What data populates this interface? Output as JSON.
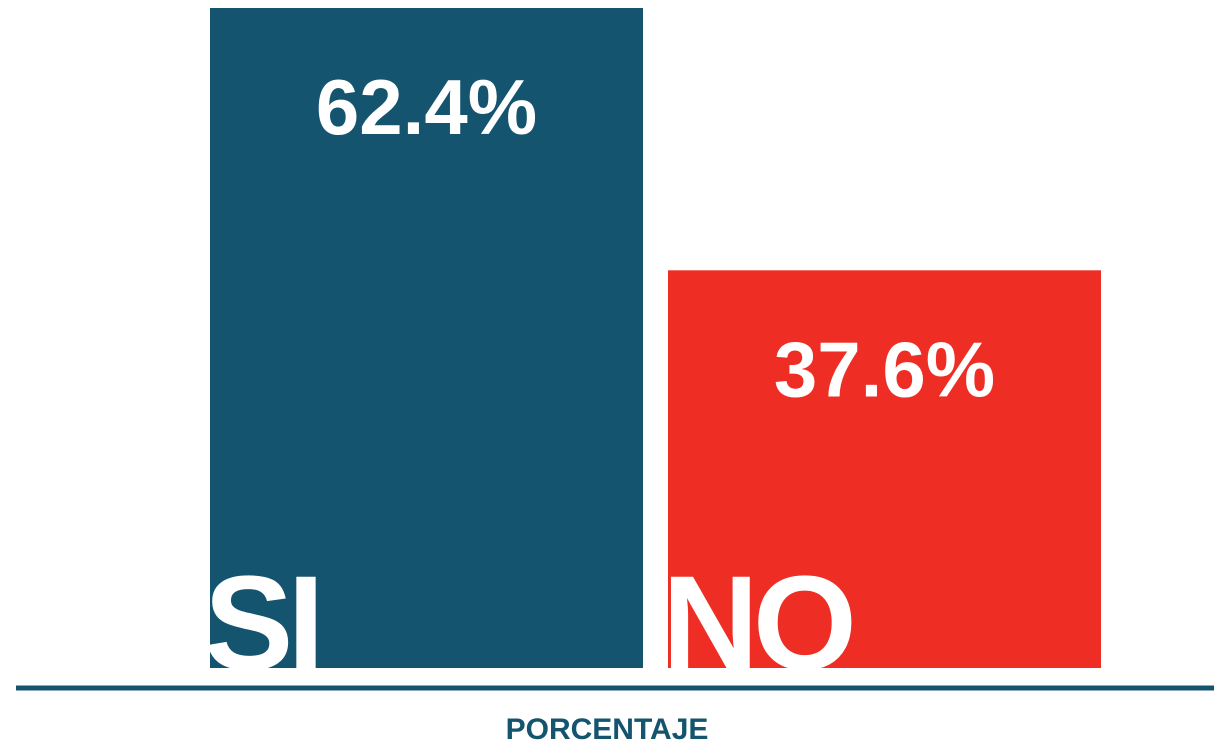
{
  "chart_data": {
    "type": "bar",
    "categories": [
      "SI",
      "NO"
    ],
    "values": [
      62.4,
      37.6
    ],
    "value_labels": [
      "62.4%",
      "37.6%"
    ],
    "colors": [
      "#14546f",
      "#ee2e24"
    ],
    "x_label": "PORCENTAJE"
  }
}
